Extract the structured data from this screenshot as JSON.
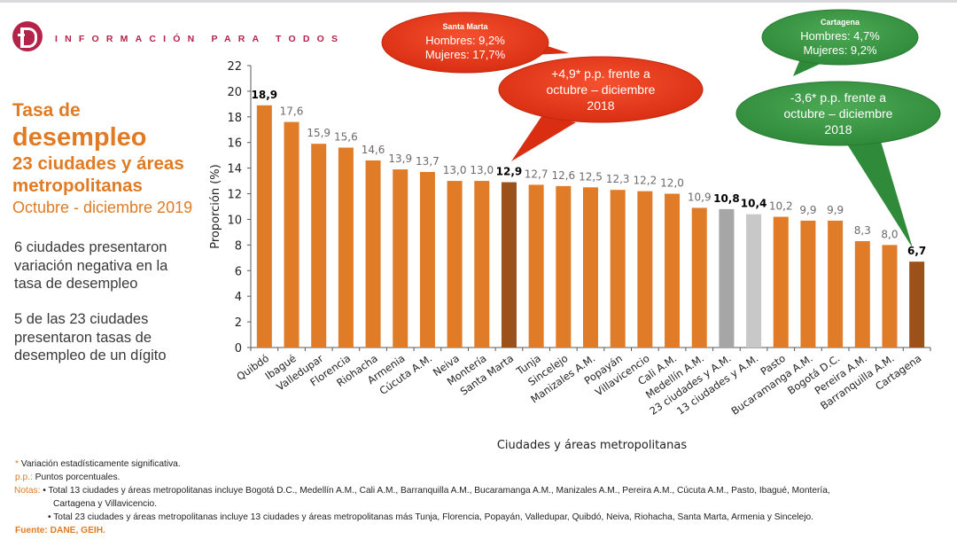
{
  "header": {
    "logo_letter": "D",
    "tagline": "INFORMACIÓN PARA TODOS"
  },
  "title": {
    "line1": "Tasa de",
    "line2": "desempleo",
    "line3": "23 ciudades y áreas",
    "line4": "metropolitanas",
    "line5": "Octubre - diciembre 2019"
  },
  "summary": {
    "p1": [
      "6 ciudades presentaron",
      "variación negativa en la",
      "tasa de desempleo"
    ],
    "p2": [
      "5 de las 23 ciudades",
      "presentaron tasas de",
      "desempleo de un dígito"
    ]
  },
  "callouts": {
    "santa_marta": {
      "title": "Santa Marta",
      "line1": "Hombres: 9,2%",
      "line2": "Mujeres: 17,7%",
      "change1": "+4,9* p.p. frente a",
      "change2": "octubre – diciembre",
      "change3": "2018",
      "color": "#e8371c"
    },
    "cartagena": {
      "title": "Cartagena",
      "line1": "Hombres: 4,7%",
      "line2": "Mujeres: 9,2%",
      "change1": "-3,6* p.p. frente a",
      "change2": "octubre – diciembre",
      "change3": "2018",
      "color": "#3f9a47"
    }
  },
  "chart_data": {
    "type": "bar",
    "title": "Tasa de desempleo 23 ciudades y áreas metropolitanas, Octubre - diciembre 2019",
    "xlabel": "Ciudades y áreas metropolitanas",
    "ylabel": "Proporción (%)",
    "ylim": [
      0,
      22
    ],
    "yticks": [
      0,
      2,
      4,
      6,
      8,
      10,
      12,
      14,
      16,
      18,
      20,
      22
    ],
    "grid": false,
    "categories": [
      "Quibdó",
      "Ibagué",
      "Valledupar",
      "Florencia",
      "Riohacha",
      "Armenia",
      "Cúcuta A.M.",
      "Neiva",
      "Montería",
      "Santa Marta",
      "Tunja",
      "Sincelejo",
      "Manizales A.M.",
      "Popayán",
      "Villavicencio",
      "Cali A.M.",
      "Medellín A.M.",
      "23 ciudades y A.M.",
      "13 ciudades y A.M.",
      "Pasto",
      "Bucaramanga A.M.",
      "Bogotá D.C.",
      "Pereira A.M.",
      "Barranquilla A.M.",
      "Cartagena"
    ],
    "values": [
      18.9,
      17.6,
      15.9,
      15.6,
      14.6,
      13.9,
      13.7,
      13.0,
      13.0,
      12.9,
      12.7,
      12.6,
      12.5,
      12.3,
      12.2,
      12.0,
      10.9,
      10.8,
      10.4,
      10.2,
      9.9,
      9.9,
      8.3,
      8.0,
      6.7
    ],
    "labels": [
      "18,9",
      "17,6",
      "15,9",
      "15,6",
      "14,6",
      "13,9",
      "13,7",
      "13,0",
      "13,0",
      "12,9",
      "12,7",
      "12,6",
      "12,5",
      "12,3",
      "12,2",
      "12,0",
      "10,9",
      "10,8",
      "10,4",
      "10,2",
      "9,9",
      "9,9",
      "8,3",
      "8,0",
      "6,7"
    ],
    "bold_labels": [
      "Quibdó",
      "Santa Marta",
      "23 ciudades y A.M.",
      "13 ciudades y A.M.",
      "Cartagena"
    ],
    "colors": {
      "default": "#e07b28",
      "highlight": "#9c511b",
      "total23": "#a6a6a6",
      "total13": "#c8c8c8"
    },
    "highlighted": [
      "Santa Marta",
      "Cartagena"
    ]
  },
  "footnotes": {
    "asterisk": "* Variación estadísticamente significativa.",
    "pp_label": "p.p.:",
    "pp_text": " Puntos porcentuales.",
    "notas_label": "Notas:",
    "nota1a": "• Total 13 ciudades y áreas metropolitanas incluye Bogotá D.C., Medellín A.M., Cali A.M., Barranquilla A.M., Bucaramanga A.M., Manizales A.M., Pereira A.M., Cúcuta A.M., Pasto, Ibagué, Montería,",
    "nota1b": "Cartagena y Villavicencio.",
    "nota2": "• Total 23 ciudades y áreas metropolitanas incluye 13 ciudades y áreas metropolitanas más Tunja, Florencia, Popayán, Valledupar, Quibdó, Neiva, Riohacha, Santa Marta, Armenia y Sincelejo.",
    "fuente": "Fuente: DANE, GEIH."
  }
}
